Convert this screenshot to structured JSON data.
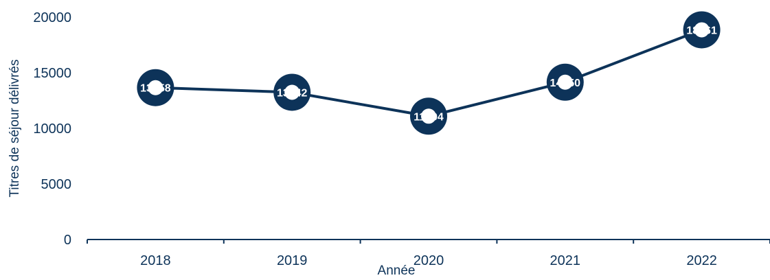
{
  "chart_data": {
    "type": "line",
    "title": "",
    "xlabel": "Année",
    "ylabel": "Titres de séjour délivrés",
    "categories": [
      "2018",
      "2019",
      "2020",
      "2021",
      "2022"
    ],
    "series": [
      {
        "values": [
          13658,
          13242,
          11094,
          14150,
          18861
        ]
      }
    ],
    "data_labels": [
      "13658",
      "13242",
      "11094",
      "14150",
      "18861"
    ],
    "ylim": [
      0,
      20000
    ],
    "yticks": [
      0,
      5000,
      10000,
      15000,
      20000
    ],
    "ytick_labels": [
      "0",
      "5000",
      "10000",
      "15000",
      "20000"
    ],
    "grid": false,
    "legend": "none",
    "colors": {
      "line": "#0d3359",
      "marker": "#0d3359",
      "marker_inner": "#ffffff",
      "text": "#0d3359",
      "label_text": "#ffffff"
    }
  }
}
